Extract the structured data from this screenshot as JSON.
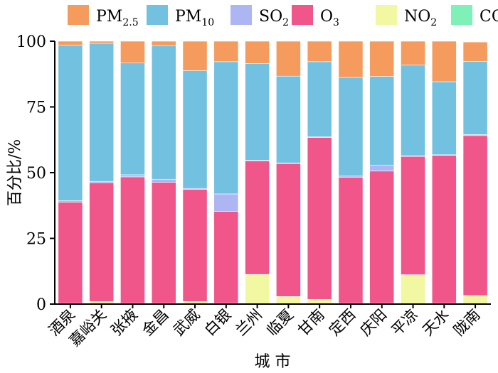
{
  "chart_data": {
    "type": "bar",
    "stacked": true,
    "xlabel": "城 市",
    "ylabel": "百分比/%",
    "ylim": [
      0,
      100
    ],
    "yticks": [
      "0",
      "25",
      "50",
      "75",
      "100"
    ],
    "grid": false,
    "legend_position": "top",
    "categories": [
      "酒泉",
      "嘉峪关",
      "张掖",
      "金昌",
      "武威",
      "白银",
      "兰州",
      "临夏",
      "甘南",
      "定西",
      "庆阳",
      "平凉",
      "天水",
      "陇南"
    ],
    "series": [
      {
        "name": "CO",
        "legend_main": "CO",
        "legend_sub": "",
        "color": "#7ff0b8",
        "values": [
          0,
          0,
          0,
          0,
          0,
          0,
          0,
          0,
          0,
          0,
          0,
          0,
          0,
          0
        ]
      },
      {
        "name": "NO2",
        "legend_main": "NO",
        "legend_sub": "2",
        "color": "#f2f7a1",
        "values": [
          0.3,
          1,
          0.3,
          0.3,
          1,
          0.3,
          11.3,
          2.9,
          1.8,
          0.3,
          0.3,
          11.2,
          0.3,
          3.3
        ]
      },
      {
        "name": "O3",
        "legend_main": "O",
        "legend_sub": "3",
        "color": "#f0568a",
        "values": [
          38.5,
          45.2,
          48.1,
          46,
          42.6,
          35,
          43.2,
          50.6,
          61.6,
          47.9,
          50.3,
          45,
          56.3,
          60.8
        ]
      },
      {
        "name": "SO2",
        "legend_main": "SO",
        "legend_sub": "2",
        "color": "#adb5f2",
        "values": [
          0.5,
          0.5,
          0.8,
          1.2,
          0.4,
          6.6,
          0.2,
          0.2,
          0.2,
          0.5,
          2.3,
          0.2,
          0.2,
          0.4
        ]
      },
      {
        "name": "PM10",
        "legend_main": "PM",
        "legend_sub": "10",
        "color": "#72c1e1",
        "values": [
          59.2,
          52.5,
          42.5,
          50.7,
          44.8,
          50.3,
          36.8,
          33,
          28.6,
          37.5,
          33.7,
          34.6,
          27.8,
          27.8
        ]
      },
      {
        "name": "PM2.5",
        "legend_main": "PM",
        "legend_sub": "2.5",
        "color": "#f59b5e",
        "values": [
          1.5,
          0.8,
          8.3,
          1.8,
          11.2,
          7.8,
          8.5,
          13.3,
          7.8,
          13.8,
          13.4,
          9,
          15.4,
          7.4
        ]
      }
    ],
    "legend_order": [
      "PM2.5",
      "PM10",
      "SO2",
      "O3",
      "NO2",
      "CO"
    ]
  }
}
